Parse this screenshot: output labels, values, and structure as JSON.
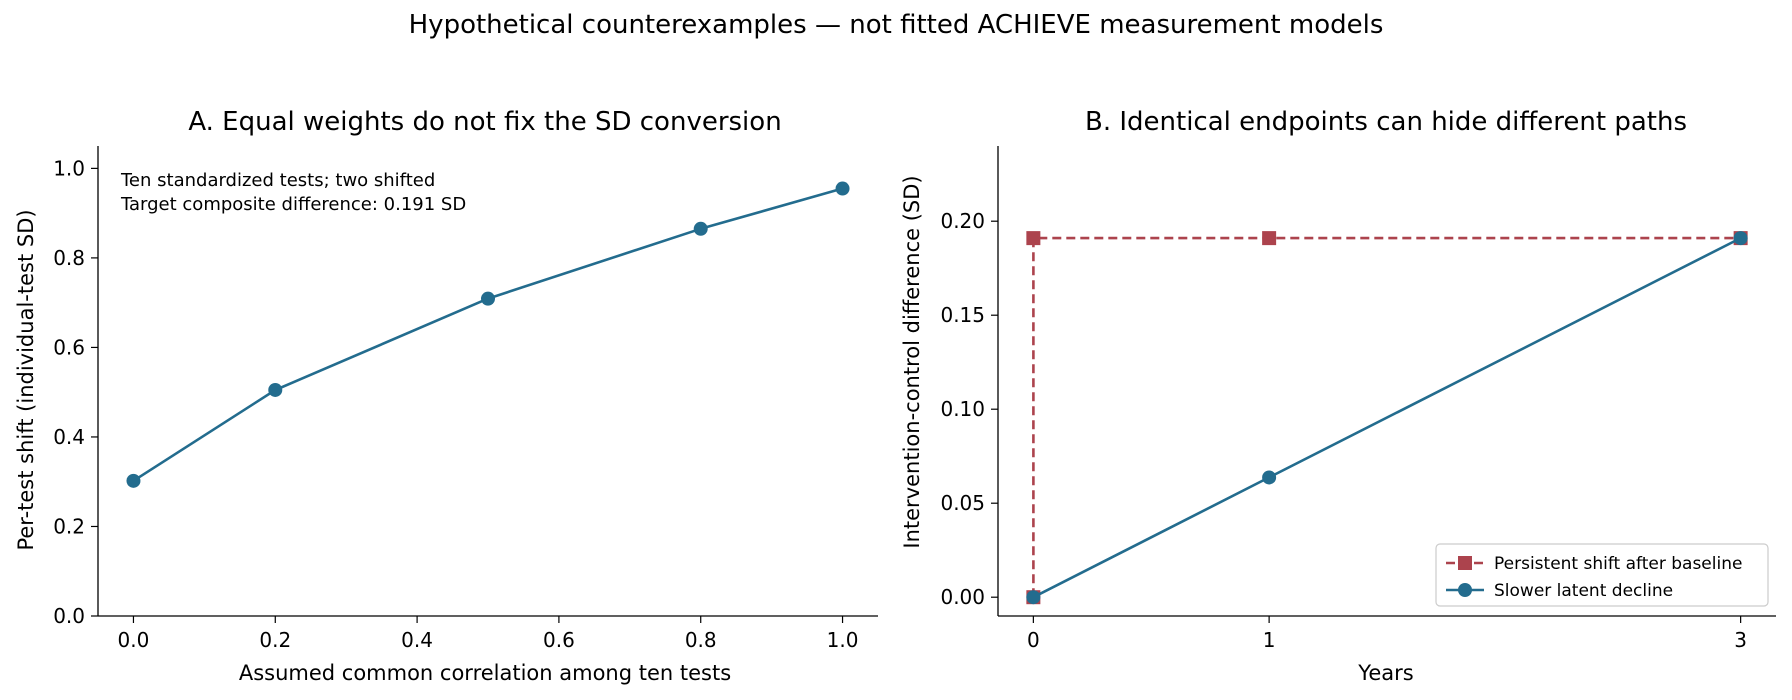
{
  "suptitle": "Hypothetical counterexamples — not fitted ACHIEVE measurement models",
  "colors": {
    "blue": "#236c8e",
    "red": "#ac434d"
  },
  "chart_data": [
    {
      "type": "line",
      "title": "A. Equal weights do not fix the SD conversion",
      "xlabel": "Assumed common correlation among ten tests",
      "ylabel": "Per-test shift (individual-test SD)",
      "xlim": [
        -0.05,
        1.05
      ],
      "ylim": [
        0,
        1.05
      ],
      "x_ticks": [
        0.0,
        0.2,
        0.4,
        0.6,
        0.8,
        1.0
      ],
      "x_tick_labels": [
        "0.0",
        "0.2",
        "0.4",
        "0.6",
        "0.8",
        "1.0"
      ],
      "y_ticks": [
        0.0,
        0.2,
        0.4,
        0.6,
        0.8,
        1.0
      ],
      "y_tick_labels": [
        "0.0",
        "0.2",
        "0.4",
        "0.6",
        "0.8",
        "1.0"
      ],
      "annotation": [
        "Ten standardized tests; two shifted",
        "Target composite difference: 0.191 SD"
      ],
      "grid": false,
      "series": [
        {
          "x": [
            0.0,
            0.2,
            0.5,
            0.8,
            1.0
          ],
          "y": [
            0.302,
            0.505,
            0.709,
            0.865,
            0.955
          ],
          "color": "#236c8e",
          "marker": "circle",
          "dash": false
        }
      ]
    },
    {
      "type": "line",
      "title": "B. Identical endpoints can hide different paths",
      "xlabel": "Years",
      "ylabel": "Intervention-control difference (SD)",
      "xlim": [
        -0.15,
        3.15
      ],
      "ylim": [
        -0.01,
        0.24
      ],
      "x_ticks": [
        0,
        1,
        3
      ],
      "x_tick_labels": [
        "0",
        "1",
        "3"
      ],
      "y_ticks": [
        0.0,
        0.05,
        0.1,
        0.15,
        0.2
      ],
      "y_tick_labels": [
        "0.00",
        "0.05",
        "0.10",
        "0.15",
        "0.20"
      ],
      "grid": false,
      "legend_position": "lower-right",
      "series": [
        {
          "name": "Persistent shift after baseline",
          "x": [
            0,
            0,
            1,
            3
          ],
          "y": [
            0.0,
            0.191,
            0.191,
            0.191
          ],
          "color": "#ac434d",
          "marker": "square",
          "dash": true
        },
        {
          "name": "Slower latent decline",
          "x": [
            0,
            1,
            3
          ],
          "y": [
            0.0,
            0.0637,
            0.191
          ],
          "color": "#236c8e",
          "marker": "circle",
          "dash": false
        }
      ]
    }
  ]
}
